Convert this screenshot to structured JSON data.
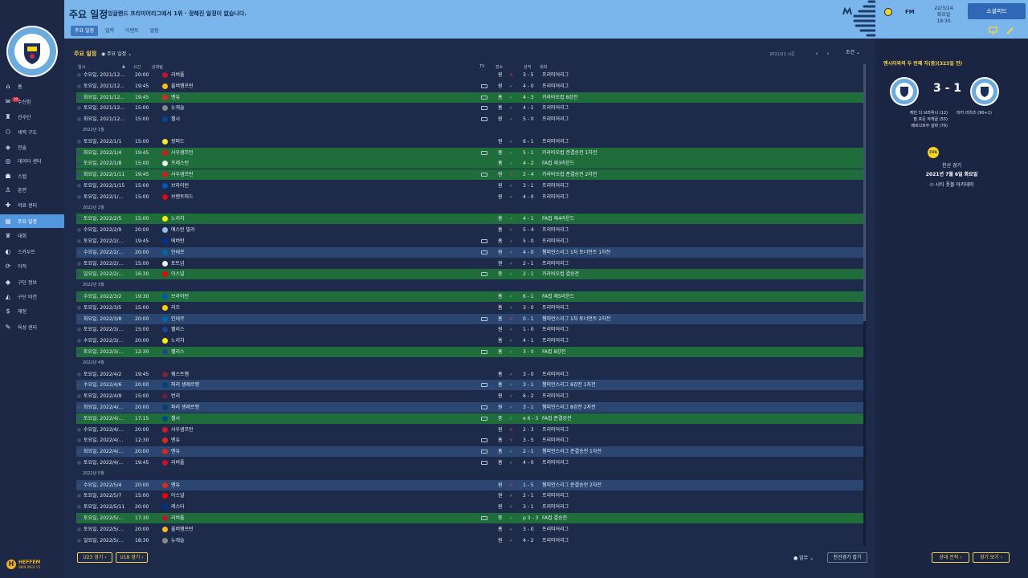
{
  "header": {
    "title": "주요 일정",
    "subtitle": "잉글랜드 프리미어리그에서 1위 · 정해진 일정이 없습니다.",
    "tabs": [
      "주요 일정",
      "일력",
      "이벤트",
      "알림"
    ],
    "brand": "FM",
    "date": "22/3/24",
    "weekday_time": "화요일 19:30",
    "continue_label": "소셜피드"
  },
  "nav": {
    "items": [
      {
        "label": "홈",
        "icon": "home-icon"
      },
      {
        "label": "수신함",
        "icon": "inbox-icon",
        "badge": "10"
      },
      {
        "label": "선수단",
        "icon": "shirt-icon"
      },
      {
        "label": "세력 구도",
        "icon": "squad-icon"
      },
      {
        "label": "전술",
        "icon": "tactics-icon"
      },
      {
        "label": "데이터 센터",
        "icon": "data-icon"
      },
      {
        "label": "스탭",
        "icon": "staff-icon"
      },
      {
        "label": "훈련",
        "icon": "training-icon"
      },
      {
        "label": "의료 센터",
        "icon": "medical-icon"
      },
      {
        "label": "주요 일정",
        "icon": "calendar-icon",
        "active": true
      },
      {
        "label": "대회",
        "icon": "trophy-icon"
      },
      {
        "label": "스카우트",
        "icon": "scout-icon"
      },
      {
        "label": "이적",
        "icon": "transfer-icon"
      },
      {
        "label": "구단 정보",
        "icon": "club-info-icon"
      },
      {
        "label": "구단 비전",
        "icon": "vision-icon"
      },
      {
        "label": "재정",
        "icon": "finance-icon"
      },
      {
        "label": "육성 센터",
        "icon": "youth-icon"
      }
    ],
    "skin_name": "HEFFEM",
    "skin_sub": "SKIN PACK V1"
  },
  "main": {
    "title": "주요 일정",
    "view_label": "주요 일정",
    "season": "2021/22 시즌",
    "filter_label": "조건",
    "headers": {
      "date": "일시",
      "time": "시간",
      "opponent": "상대팀",
      "tv": "TV",
      "venue": "장소",
      "result": "성적",
      "comp": "대회"
    },
    "rows": [
      {
        "d": "수요일, 2021/12...",
        "t": "20:00",
        "o": "리버풀",
        "tv": false,
        "v": "원",
        "r": "x",
        "s": "3 - 5",
        "c": "프리미어리그",
        "cl": "",
        "ic": "#c8102e"
      },
      {
        "d": "토요일, 2021/12...",
        "t": "19:45",
        "o": "울버햄프턴",
        "tv": true,
        "v": "원",
        "r": "c",
        "s": "4 - 0",
        "c": "프리미어리그",
        "cl": "",
        "ic": "#fdb913"
      },
      {
        "d": "화요일, 2021/12...",
        "t": "19:45",
        "o": "맨유",
        "tv": true,
        "v": "홈",
        "r": "c",
        "s": "4 - 3",
        "c": "카라바오컵 8강전",
        "cl": "g",
        "ic": "#da291c"
      },
      {
        "d": "토요일, 2021/12...",
        "t": "15:00",
        "o": "뉴캐슬",
        "tv": true,
        "v": "홈",
        "r": "c",
        "s": "4 - 1",
        "c": "프리미어리그",
        "cl": "",
        "ic": "#888"
      },
      {
        "d": "화요일, 2021/12...",
        "t": "15:00",
        "o": "첼시",
        "tv": true,
        "v": "원",
        "r": "c",
        "s": "5 - 0",
        "c": "프리미어리그",
        "cl": "",
        "ic": "#034694"
      },
      {
        "month": "2022년 1월"
      },
      {
        "d": "토요일, 2022/1/1",
        "t": "15:00",
        "o": "왓퍼드",
        "tv": false,
        "v": "원",
        "r": "c",
        "s": "6 - 1",
        "c": "프리미어리그",
        "cl": "",
        "ic": "#fbee23"
      },
      {
        "d": "화요일, 2022/1/4",
        "t": "19:45",
        "o": "사우샘프턴",
        "tv": true,
        "v": "홈",
        "r": "c",
        "s": "5 - 1",
        "c": "카라바오컵 준결승전 1차전",
        "cl": "g",
        "ic": "#d71920"
      },
      {
        "d": "토요일, 2022/1/8",
        "t": "15:00",
        "o": "프레스턴",
        "tv": false,
        "v": "홈",
        "r": "c",
        "s": "4 - 2",
        "c": "FA컵 제3라운드",
        "cl": "g",
        "ic": "#eee"
      },
      {
        "d": "화요일, 2022/1/11",
        "t": "19:45",
        "o": "사우샘프턴",
        "tv": true,
        "v": "원",
        "r": "x",
        "s": "2 - 4",
        "c": "카라바오컵 준결승전 2차전",
        "cl": "g",
        "ic": "#d71920"
      },
      {
        "d": "토요일, 2022/1/15",
        "t": "15:00",
        "o": "브라이턴",
        "tv": false,
        "v": "원",
        "r": "c",
        "s": "3 - 1",
        "c": "프리미어리그",
        "cl": "",
        "ic": "#0057b8"
      },
      {
        "d": "토요일, 2022/1/...",
        "t": "15:00",
        "o": "브렌트퍼드",
        "tv": false,
        "v": "원",
        "r": "c",
        "s": "4 - 0",
        "c": "프리미어리그",
        "cl": "",
        "ic": "#e30613"
      },
      {
        "month": "2022년 2월"
      },
      {
        "d": "토요일, 2022/2/5",
        "t": "15:00",
        "o": "노리치",
        "tv": false,
        "v": "홈",
        "r": "c",
        "s": "4 - 1",
        "c": "FA컵 제4라운드",
        "cl": "g",
        "ic": "#fff200"
      },
      {
        "d": "수요일, 2022/2/9",
        "t": "20:00",
        "o": "애스턴 빌라",
        "tv": false,
        "v": "홈",
        "r": "c",
        "s": "5 - 4",
        "c": "프리미어리그",
        "cl": "",
        "ic": "#95bfe5"
      },
      {
        "d": "토요일, 2022/2/...",
        "t": "19:45",
        "o": "에버턴",
        "tv": true,
        "v": "홈",
        "r": "c",
        "s": "5 - 0",
        "c": "프리미어리그",
        "cl": "",
        "ic": "#003399"
      },
      {
        "d": "수요일, 2022/2/...",
        "t": "20:00",
        "o": "인테르",
        "tv": true,
        "v": "원",
        "r": "c",
        "s": "4 - 0",
        "c": "챔피언스리그 1차 토너먼트 1차전",
        "cl": "b",
        "ic": "#0068a8"
      },
      {
        "d": "토요일, 2022/2/...",
        "t": "15:00",
        "o": "토트넘",
        "tv": false,
        "v": "원",
        "r": "c",
        "s": "2 - 1",
        "c": "프리미어리그",
        "cl": "",
        "ic": "#eee"
      },
      {
        "d": "일요일, 2022/2/...",
        "t": "16:30",
        "o": "아스널",
        "tv": true,
        "v": "중",
        "r": "c",
        "s": "2 - 1",
        "c": "카라바오컵 결승전",
        "cl": "g",
        "ic": "#ef0107"
      },
      {
        "month": "2022년 3월"
      },
      {
        "d": "수요일, 2022/3/2",
        "t": "19:30",
        "o": "브라이턴",
        "tv": false,
        "v": "홈",
        "r": "c",
        "s": "6 - 1",
        "c": "FA컵 제5라운드",
        "cl": "g",
        "ic": "#0057b8"
      },
      {
        "d": "토요일, 2022/3/5",
        "t": "15:00",
        "o": "리즈",
        "tv": false,
        "v": "홈",
        "r": "c",
        "s": "3 - 0",
        "c": "프리미어리그",
        "cl": "",
        "ic": "#ffcd00"
      },
      {
        "d": "화요일, 2022/3/8",
        "t": "20:00",
        "o": "인테르",
        "tv": true,
        "v": "홈",
        "r": "x",
        "s": "0 - 1",
        "c": "챔피언스리그 1차 토너먼트 2차전",
        "cl": "b",
        "ic": "#0068a8"
      },
      {
        "d": "토요일, 2022/3/...",
        "t": "15:00",
        "o": "팰리스",
        "tv": false,
        "v": "원",
        "r": "c",
        "s": "1 - 0",
        "c": "프리미어리그",
        "cl": "",
        "ic": "#1b458f"
      },
      {
        "d": "수요일, 2022/3/...",
        "t": "20:00",
        "o": "노리치",
        "tv": false,
        "v": "홈",
        "r": "c",
        "s": "4 - 1",
        "c": "프리미어리그",
        "cl": "",
        "ic": "#fff200"
      },
      {
        "d": "토요일, 2022/3/...",
        "t": "12:30",
        "o": "팰리스",
        "tv": true,
        "v": "홈",
        "r": "c",
        "s": "3 - 0",
        "c": "FA컵 8강전",
        "cl": "g",
        "ic": "#1b458f"
      },
      {
        "month": "2022년 4월"
      },
      {
        "d": "토요일, 2022/4/2",
        "t": "19:45",
        "o": "웨스트햄",
        "tv": false,
        "v": "홈",
        "r": "c",
        "s": "3 - 0",
        "c": "프리미어리그",
        "cl": "",
        "ic": "#7a263a"
      },
      {
        "d": "수요일, 2022/4/6",
        "t": "20:00",
        "o": "파리 생제르맹",
        "tv": true,
        "v": "홈",
        "r": "c",
        "s": "3 - 1",
        "c": "챔피언스리그 8강전 1차전",
        "cl": "b",
        "ic": "#004170"
      },
      {
        "d": "토요일, 2022/4/9",
        "t": "15:00",
        "o": "번리",
        "tv": false,
        "v": "원",
        "r": "c",
        "s": "6 - 2",
        "c": "프리미어리그",
        "cl": "",
        "ic": "#6c1d45"
      },
      {
        "d": "화요일, 2022/4/...",
        "t": "20:00",
        "o": "파리 생제르맹",
        "tv": true,
        "v": "원",
        "r": "c",
        "s": "3 - 1",
        "c": "챔피언스리그 8강전 2차전",
        "cl": "b",
        "ic": "#004170"
      },
      {
        "d": "토요일, 2022/4/...",
        "t": "17:15",
        "o": "첼시",
        "tv": true,
        "v": "중",
        "r": "c",
        "s": "e 6 - 3",
        "c": "FA컵 준결승전",
        "cl": "g",
        "ic": "#034694"
      },
      {
        "d": "수요일, 2022/4/...",
        "t": "20:00",
        "o": "사우샘프턴",
        "tv": false,
        "v": "원",
        "r": "x",
        "s": "2 - 3",
        "c": "프리미어리그",
        "cl": "",
        "ic": "#d71920"
      },
      {
        "d": "토요일, 2022/4/...",
        "t": "12:30",
        "o": "맨유",
        "tv": true,
        "v": "홈",
        "r": "x",
        "s": "3 - 5",
        "c": "프리미어리그",
        "cl": "",
        "ic": "#da291c"
      },
      {
        "d": "화요일, 2022/4/...",
        "t": "20:00",
        "o": "맨유",
        "tv": true,
        "v": "홈",
        "r": "c",
        "s": "2 - 1",
        "c": "챔피언스리그 준결승전 1차전",
        "cl": "b",
        "ic": "#da291c"
      },
      {
        "d": "토요일, 2022/4/...",
        "t": "19:45",
        "o": "리버풀",
        "tv": true,
        "v": "홈",
        "r": "c",
        "s": "4 - 0",
        "c": "프리미어리그",
        "cl": "",
        "ic": "#c8102e"
      },
      {
        "month": "2022년 5월"
      },
      {
        "d": "수요일, 2022/5/4",
        "t": "20:00",
        "o": "맨유",
        "tv": false,
        "v": "원",
        "r": "x",
        "s": "1 - 5",
        "c": "챔피언스리그 준결승전 2차전",
        "cl": "b",
        "ic": "#da291c"
      },
      {
        "d": "토요일, 2022/5/7",
        "t": "15:00",
        "o": "아스널",
        "tv": false,
        "v": "원",
        "r": "c",
        "s": "2 - 1",
        "c": "프리미어리그",
        "cl": "",
        "ic": "#ef0107"
      },
      {
        "d": "토요일, 2022/5/11",
        "t": "20:00",
        "o": "레스터",
        "tv": false,
        "v": "원",
        "r": "c",
        "s": "3 - 1",
        "c": "프리미어리그",
        "cl": "",
        "ic": "#003090"
      },
      {
        "d": "토요일, 2022/5/...",
        "t": "17:30",
        "o": "리버풀",
        "tv": true,
        "v": "중",
        "r": "c",
        "s": "p 3 - 3",
        "c": "FA컵 결승전",
        "cl": "g",
        "ic": "#c8102e"
      },
      {
        "d": "토요일, 2022/5/...",
        "t": "20:00",
        "o": "울버햄프턴",
        "tv": false,
        "v": "홈",
        "r": "c",
        "s": "3 - 0",
        "c": "프리미어리그",
        "cl": "",
        "ic": "#fdb913"
      },
      {
        "d": "일요일, 2022/5/...",
        "t": "18:30",
        "o": "뉴캐슬",
        "tv": false,
        "v": "원",
        "r": "c",
        "s": "4 - 2",
        "c": "프리미어리그",
        "cl": "",
        "ic": "#888"
      }
    ],
    "bottom": {
      "u23": "U23 경기",
      "u18": "U18 경기",
      "tasks": "업무",
      "friendly": "친선경기 잡기"
    }
  },
  "right_panel": {
    "title": "맨시티와의 두 번째 지(중)(323일 전)",
    "score": "3 - 1",
    "scorers_home": [
      "케빈 더 브라위너 (12)",
      "필 포든 자책골 (55)",
      "베르나르두 실바 (76)"
    ],
    "scorer_away": "미카 리차즈 (90+1)",
    "comp_icon_text": "FIFA",
    "match_type": "친선 경기",
    "match_date": "2021년 7월 6일 화요일",
    "venue": "시티 풋볼 아카데미",
    "btn_h2h": "상대 전적",
    "btn_view": "경기 보기"
  },
  "colors": {
    "topbar": "#7ab6ec",
    "accent": "#f6d34a",
    "green_row": "#1f6d3b",
    "blue_row": "#2b4670",
    "active_nav": "#5296dd"
  }
}
